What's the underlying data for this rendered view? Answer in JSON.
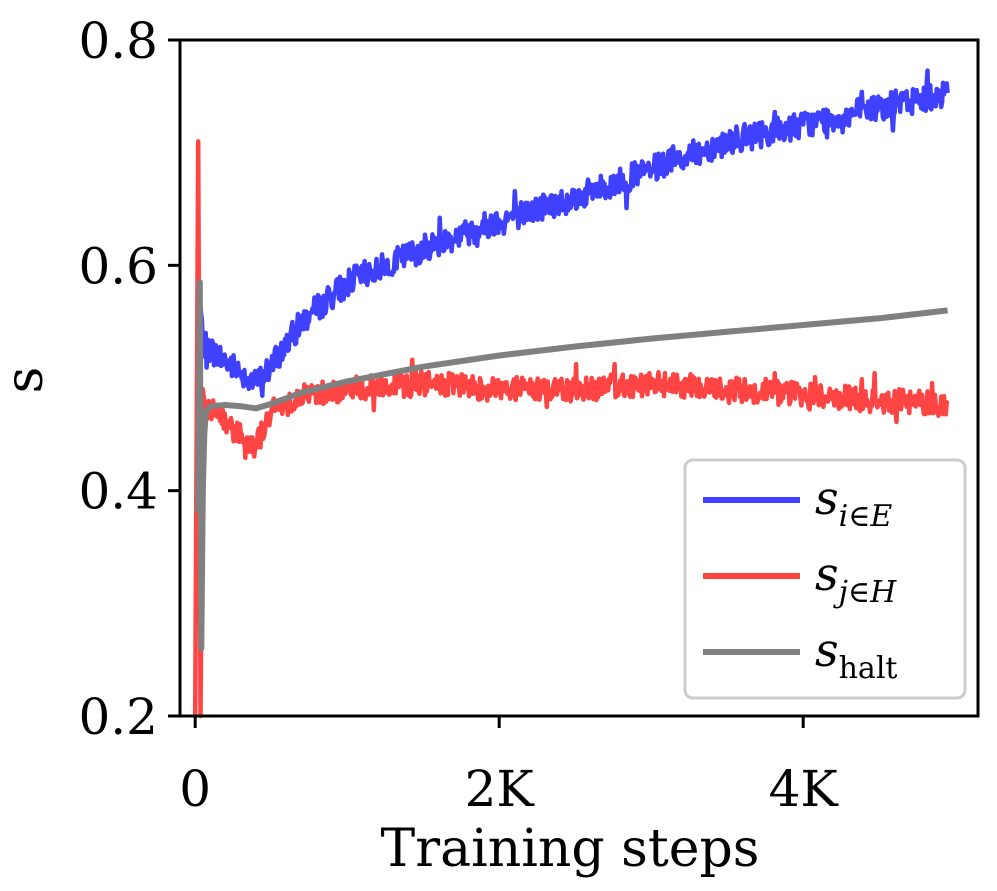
{
  "chart_data": {
    "type": "line",
    "title": "",
    "xlabel": "Training steps",
    "ylabel": "s",
    "xlim": [
      -100,
      5150
    ],
    "ylim": [
      0.2,
      0.8
    ],
    "x_ticks": [
      0,
      2000,
      4000
    ],
    "x_tick_labels": [
      "0",
      "2K",
      "4K"
    ],
    "y_ticks": [
      0.2,
      0.4,
      0.6,
      0.8
    ],
    "y_tick_labels": [
      "0.2",
      "0.4",
      "0.6",
      "0.8"
    ],
    "grid": false,
    "legend_position": "bottom-right",
    "series": [
      {
        "name": "s_{i∈E}",
        "legend_base": "s",
        "legend_sub": "i∈E",
        "color": "#4040ff",
        "noise": 0.012,
        "x": [
          20,
          50,
          100,
          200,
          300,
          400,
          500,
          700,
          1000,
          1500,
          2000,
          2500,
          3000,
          3500,
          4000,
          4500,
          4950
        ],
        "y": [
          0.59,
          0.53,
          0.525,
          0.515,
          0.505,
          0.495,
          0.51,
          0.55,
          0.585,
          0.615,
          0.64,
          0.66,
          0.685,
          0.71,
          0.725,
          0.74,
          0.753
        ]
      },
      {
        "name": "s_{j∈H}",
        "legend_base": "s",
        "legend_sub": "j∈H",
        "color": "#ff4444",
        "noise": 0.011,
        "x": [
          0,
          20,
          35,
          50,
          70,
          100,
          200,
          300,
          400,
          500,
          700,
          1000,
          1500,
          2000,
          2500,
          3000,
          3500,
          4000,
          4500,
          4950
        ],
        "y": [
          0.2,
          0.71,
          0.2,
          0.49,
          0.47,
          0.475,
          0.46,
          0.45,
          0.44,
          0.47,
          0.485,
          0.49,
          0.495,
          0.49,
          0.49,
          0.495,
          0.49,
          0.485,
          0.48,
          0.477
        ]
      },
      {
        "name": "s_halt",
        "legend_base": "s",
        "legend_sub": "halt",
        "color": "#808080",
        "noise": 0,
        "x": [
          20,
          30,
          40,
          50,
          60,
          70,
          100,
          200,
          300,
          400,
          500,
          700,
          1000,
          1500,
          2000,
          2500,
          3000,
          3500,
          4000,
          4500,
          4950
        ],
        "y": [
          0.38,
          0.585,
          0.26,
          0.4,
          0.45,
          0.47,
          0.475,
          0.476,
          0.475,
          0.473,
          0.477,
          0.487,
          0.497,
          0.51,
          0.52,
          0.528,
          0.535,
          0.541,
          0.547,
          0.553,
          0.56
        ]
      }
    ]
  }
}
